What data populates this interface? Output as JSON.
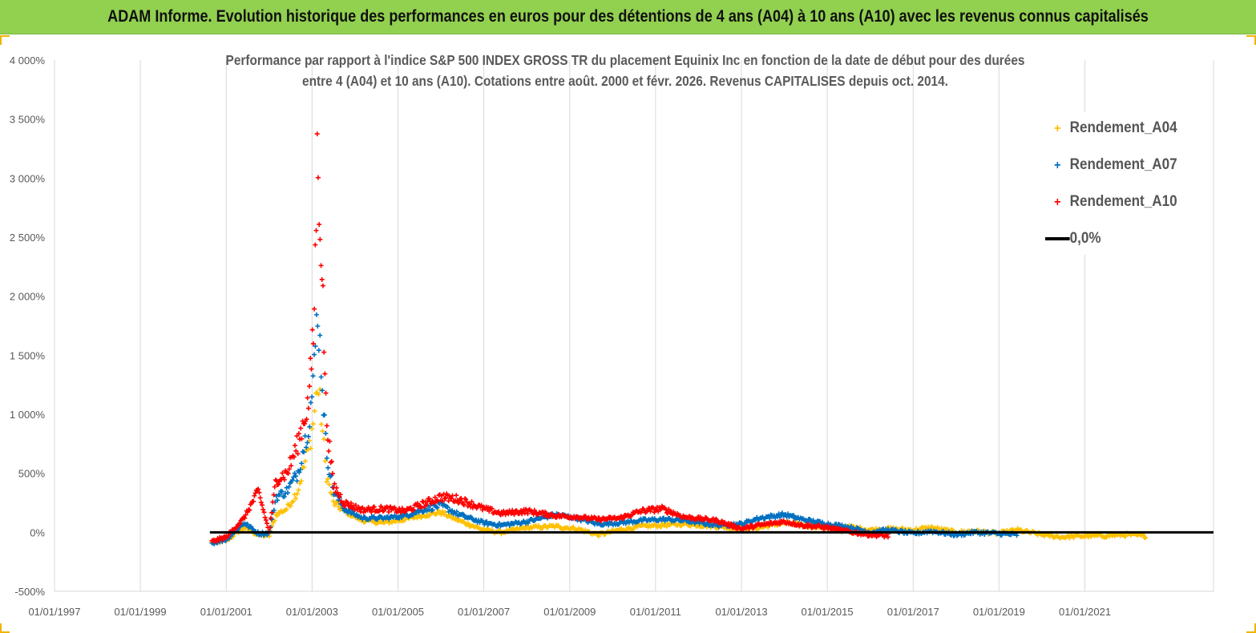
{
  "banner": {
    "title": "ADAM Informe. Evolution historique des performances en euros pour des détentions de 4 ans (A04) à 10 ans (A10) avec les revenus connus capitalisés",
    "color": "#92d050"
  },
  "chart_data": {
    "type": "scatter",
    "title_lines": [
      "Performance par rapport à l'indice S&P 500 INDEX GROSS TR  du placement Equinix Inc en fonction de la date de début pour des durées",
      "entre 4 (A04) et 10 ans (A10). Cotations entre août. 2000 et févr. 2026. Revenus CAPITALISES depuis oct. 2014."
    ],
    "xlabel": "",
    "ylabel": "",
    "x_ticks": [
      "01/01/1997",
      "01/01/1999",
      "01/01/2001",
      "01/01/2003",
      "01/01/2005",
      "01/01/2007",
      "01/01/2009",
      "01/01/2011",
      "01/01/2013",
      "01/01/2015",
      "01/01/2017",
      "01/01/2019",
      "01/01/2021"
    ],
    "y_ticks": [
      "-500%",
      "0%",
      "500%",
      "1 000%",
      "1 500%",
      "2 000%",
      "2 500%",
      "3 000%",
      "3 500%",
      "4 000%"
    ],
    "xlim": [
      "1997-01-01",
      "2023-12-31"
    ],
    "ylim": [
      -500,
      4000
    ],
    "grid": "vertical",
    "legend_position": "top-right",
    "series": [
      {
        "name": "Rendement_A04",
        "color": "#ffc000",
        "marker": "+",
        "x": [
          "2000-09-01",
          "2001-01-01",
          "2001-06-01",
          "2001-10-01",
          "2002-01-01",
          "2002-03-01",
          "2002-06-01",
          "2002-09-01",
          "2002-12-01",
          "2003-01-15",
          "2003-02-15",
          "2003-03-15",
          "2003-05-01",
          "2003-07-01",
          "2003-10-01",
          "2004-03-01",
          "2004-09-01",
          "2005-03-01",
          "2005-09-01",
          "2006-01-01",
          "2006-06-01",
          "2007-01-01",
          "2007-06-01",
          "2008-01-01",
          "2008-09-01",
          "2009-03-01",
          "2009-09-01",
          "2010-03-01",
          "2010-09-01",
          "2011-03-01",
          "2011-09-01",
          "2012-06-01",
          "2013-01-01",
          "2013-06-01",
          "2014-01-01",
          "2014-06-01",
          "2015-01-01",
          "2015-06-01",
          "2016-01-01",
          "2016-06-01",
          "2017-01-01",
          "2017-06-01",
          "2018-01-01",
          "2018-06-01",
          "2019-01-01",
          "2019-06-01",
          "2020-01-01",
          "2020-06-01",
          "2021-01-01",
          "2021-06-01",
          "2022-01-01",
          "2022-06-01"
        ],
        "y": [
          -90,
          -70,
          40,
          -20,
          -30,
          150,
          200,
          350,
          700,
          950,
          1250,
          1050,
          500,
          250,
          180,
          100,
          80,
          110,
          150,
          170,
          100,
          20,
          0,
          40,
          50,
          30,
          -20,
          20,
          50,
          60,
          70,
          50,
          30,
          40,
          80,
          60,
          40,
          50,
          20,
          30,
          20,
          40,
          0,
          10,
          -10,
          20,
          -20,
          -40,
          -30,
          -30,
          -20,
          -30
        ]
      },
      {
        "name": "Rendement_A07",
        "color": "#0070c0",
        "marker": "+",
        "x": [
          "2000-09-01",
          "2001-01-01",
          "2001-06-01",
          "2001-10-01",
          "2002-01-01",
          "2002-03-01",
          "2002-06-01",
          "2002-09-01",
          "2002-12-01",
          "2003-01-15",
          "2003-02-15",
          "2003-03-15",
          "2003-05-01",
          "2003-07-01",
          "2003-10-01",
          "2004-03-01",
          "2004-09-01",
          "2005-03-01",
          "2005-09-01",
          "2006-01-01",
          "2006-06-01",
          "2007-01-01",
          "2007-06-01",
          "2008-01-01",
          "2008-09-01",
          "2009-03-01",
          "2009-09-01",
          "2010-03-01",
          "2010-09-01",
          "2011-03-01",
          "2011-09-01",
          "2012-06-01",
          "2013-01-01",
          "2013-06-01",
          "2014-01-01",
          "2014-06-01",
          "2015-01-01",
          "2015-06-01",
          "2016-01-01",
          "2016-06-01",
          "2017-01-01",
          "2017-06-01",
          "2018-01-01",
          "2018-06-01",
          "2019-01-01",
          "2019-06-01"
        ],
        "y": [
          -90,
          -60,
          80,
          -10,
          -10,
          300,
          350,
          500,
          900,
          1300,
          1900,
          1500,
          700,
          350,
          200,
          120,
          120,
          140,
          200,
          230,
          150,
          80,
          60,
          90,
          150,
          120,
          70,
          80,
          100,
          110,
          100,
          60,
          70,
          120,
          150,
          110,
          70,
          50,
          0,
          20,
          -10,
          10,
          -20,
          0,
          -10,
          -20
        ]
      },
      {
        "name": "Rendement_A10",
        "color": "#ff0000",
        "marker": "+",
        "x": [
          "2000-09-01",
          "2001-01-01",
          "2001-06-01",
          "2001-10-01",
          "2002-01-01",
          "2002-03-01",
          "2002-06-01",
          "2002-09-01",
          "2002-12-01",
          "2003-01-15",
          "2003-02-15",
          "2003-03-15",
          "2003-05-01",
          "2003-07-01",
          "2003-10-01",
          "2004-03-01",
          "2004-09-01",
          "2005-03-01",
          "2005-09-01",
          "2006-01-01",
          "2006-06-01",
          "2007-01-01",
          "2007-06-01",
          "2008-01-01",
          "2008-09-01",
          "2009-03-01",
          "2009-09-01",
          "2010-03-01",
          "2010-09-01",
          "2011-03-01",
          "2011-09-01",
          "2012-06-01",
          "2013-01-01",
          "2013-06-01",
          "2014-01-01",
          "2014-06-01",
          "2015-01-01",
          "2015-06-01",
          "2016-01-01",
          "2016-06-01"
        ],
        "y": [
          -80,
          -40,
          120,
          350,
          0,
          450,
          500,
          750,
          1100,
          1700,
          3200,
          2600,
          1000,
          400,
          250,
          190,
          200,
          180,
          250,
          300,
          280,
          200,
          160,
          180,
          140,
          130,
          110,
          120,
          180,
          200,
          130,
          100,
          30,
          60,
          90,
          60,
          40,
          10,
          -20,
          -30
        ]
      },
      {
        "name": "0,0%",
        "color": "#000000",
        "marker": "line",
        "x": [
          "2000-08-15",
          "2023-12-31"
        ],
        "y": [
          0,
          0
        ]
      }
    ]
  }
}
